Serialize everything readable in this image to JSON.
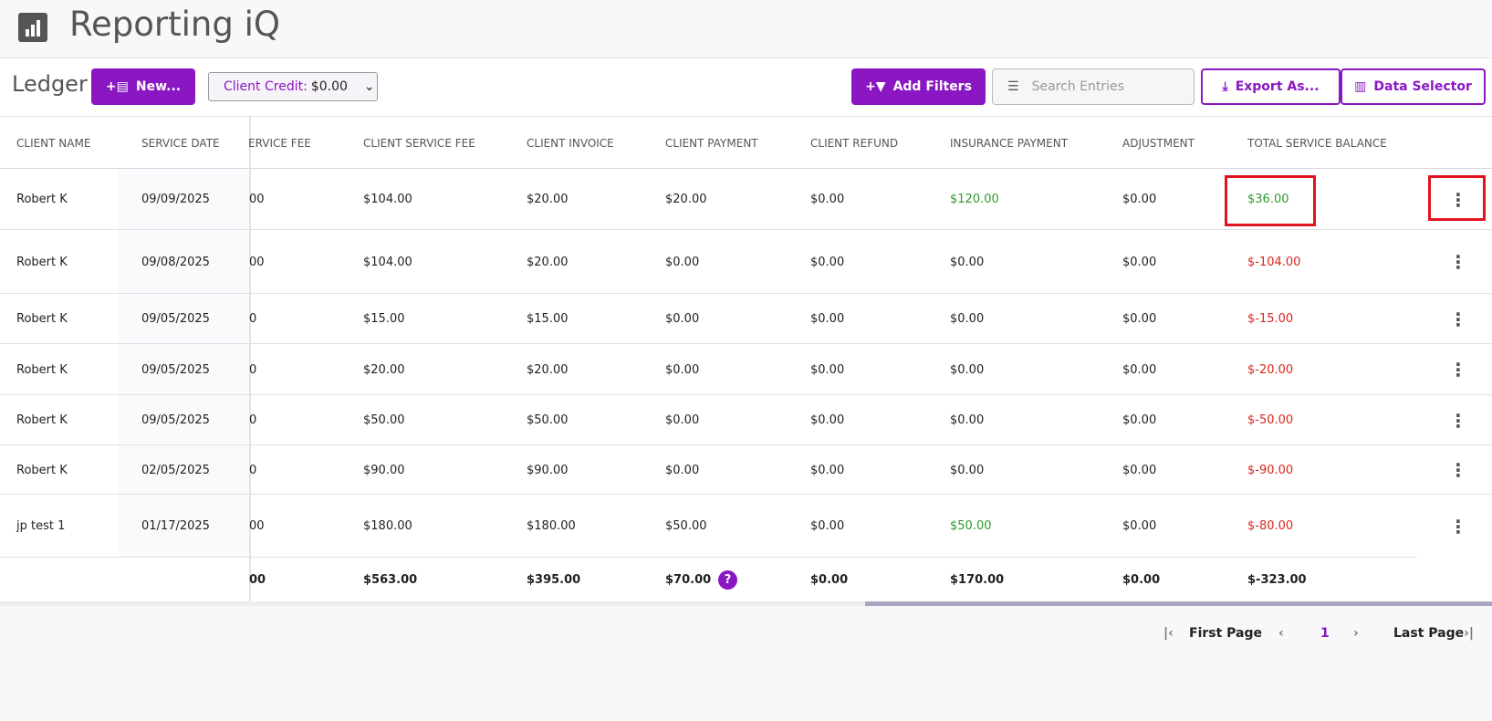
{
  "header": {
    "title": "Reporting iQ"
  },
  "toolbar": {
    "title": "Ledger",
    "new_button": "New...",
    "client_credit_label": "Client Credit:",
    "client_credit_value": "$0.00",
    "add_filters": "Add Filters",
    "search_placeholder": "Search Entries",
    "export_button": "Export As...",
    "data_selector_button": "Data Selector"
  },
  "table": {
    "columns": [
      "CLIENT NAME",
      "SERVICE DATE",
      "ERVICE FEE",
      "CLIENT SERVICE FEE",
      "CLIENT INVOICE",
      "CLIENT PAYMENT",
      "CLIENT REFUND",
      "INSURANCE PAYMENT",
      "ADJUSTMENT",
      "TOTAL SERVICE BALANCE"
    ],
    "rows": [
      [
        "Robert K",
        "09/09/2025",
        "00",
        "$104.00",
        "$20.00",
        "$20.00",
        "$0.00",
        "$120.00",
        "$0.00",
        "$36.00"
      ],
      [
        "Robert K",
        "09/08/2025",
        "00",
        "$104.00",
        "$20.00",
        "$0.00",
        "$0.00",
        "$0.00",
        "$0.00",
        "$-104.00"
      ],
      [
        "Robert K",
        "09/05/2025",
        "0",
        "$15.00",
        "$15.00",
        "$0.00",
        "$0.00",
        "$0.00",
        "$0.00",
        "$-15.00"
      ],
      [
        "Robert K",
        "09/05/2025",
        "0",
        "$20.00",
        "$20.00",
        "$0.00",
        "$0.00",
        "$0.00",
        "$0.00",
        "$-20.00"
      ],
      [
        "Robert K",
        "09/05/2025",
        "0",
        "$50.00",
        "$50.00",
        "$0.00",
        "$0.00",
        "$0.00",
        "$0.00",
        "$-50.00"
      ],
      [
        "Robert K",
        "02/05/2025",
        "0",
        "$90.00",
        "$90.00",
        "$0.00",
        "$0.00",
        "$0.00",
        "$0.00",
        "$-90.00"
      ],
      [
        "jp test 1",
        "01/17/2025",
        "00",
        "$180.00",
        "$180.00",
        "$50.00",
        "$0.00",
        "$50.00",
        "$0.00",
        "$-80.00"
      ]
    ],
    "totals": [
      "00",
      "$563.00",
      "$395.00",
      "$70.00",
      "$0.00",
      "$170.00",
      "$0.00",
      "$-323.00"
    ]
  },
  "pagination": {
    "first": "First Page",
    "current": "1",
    "last": "Last Page"
  }
}
